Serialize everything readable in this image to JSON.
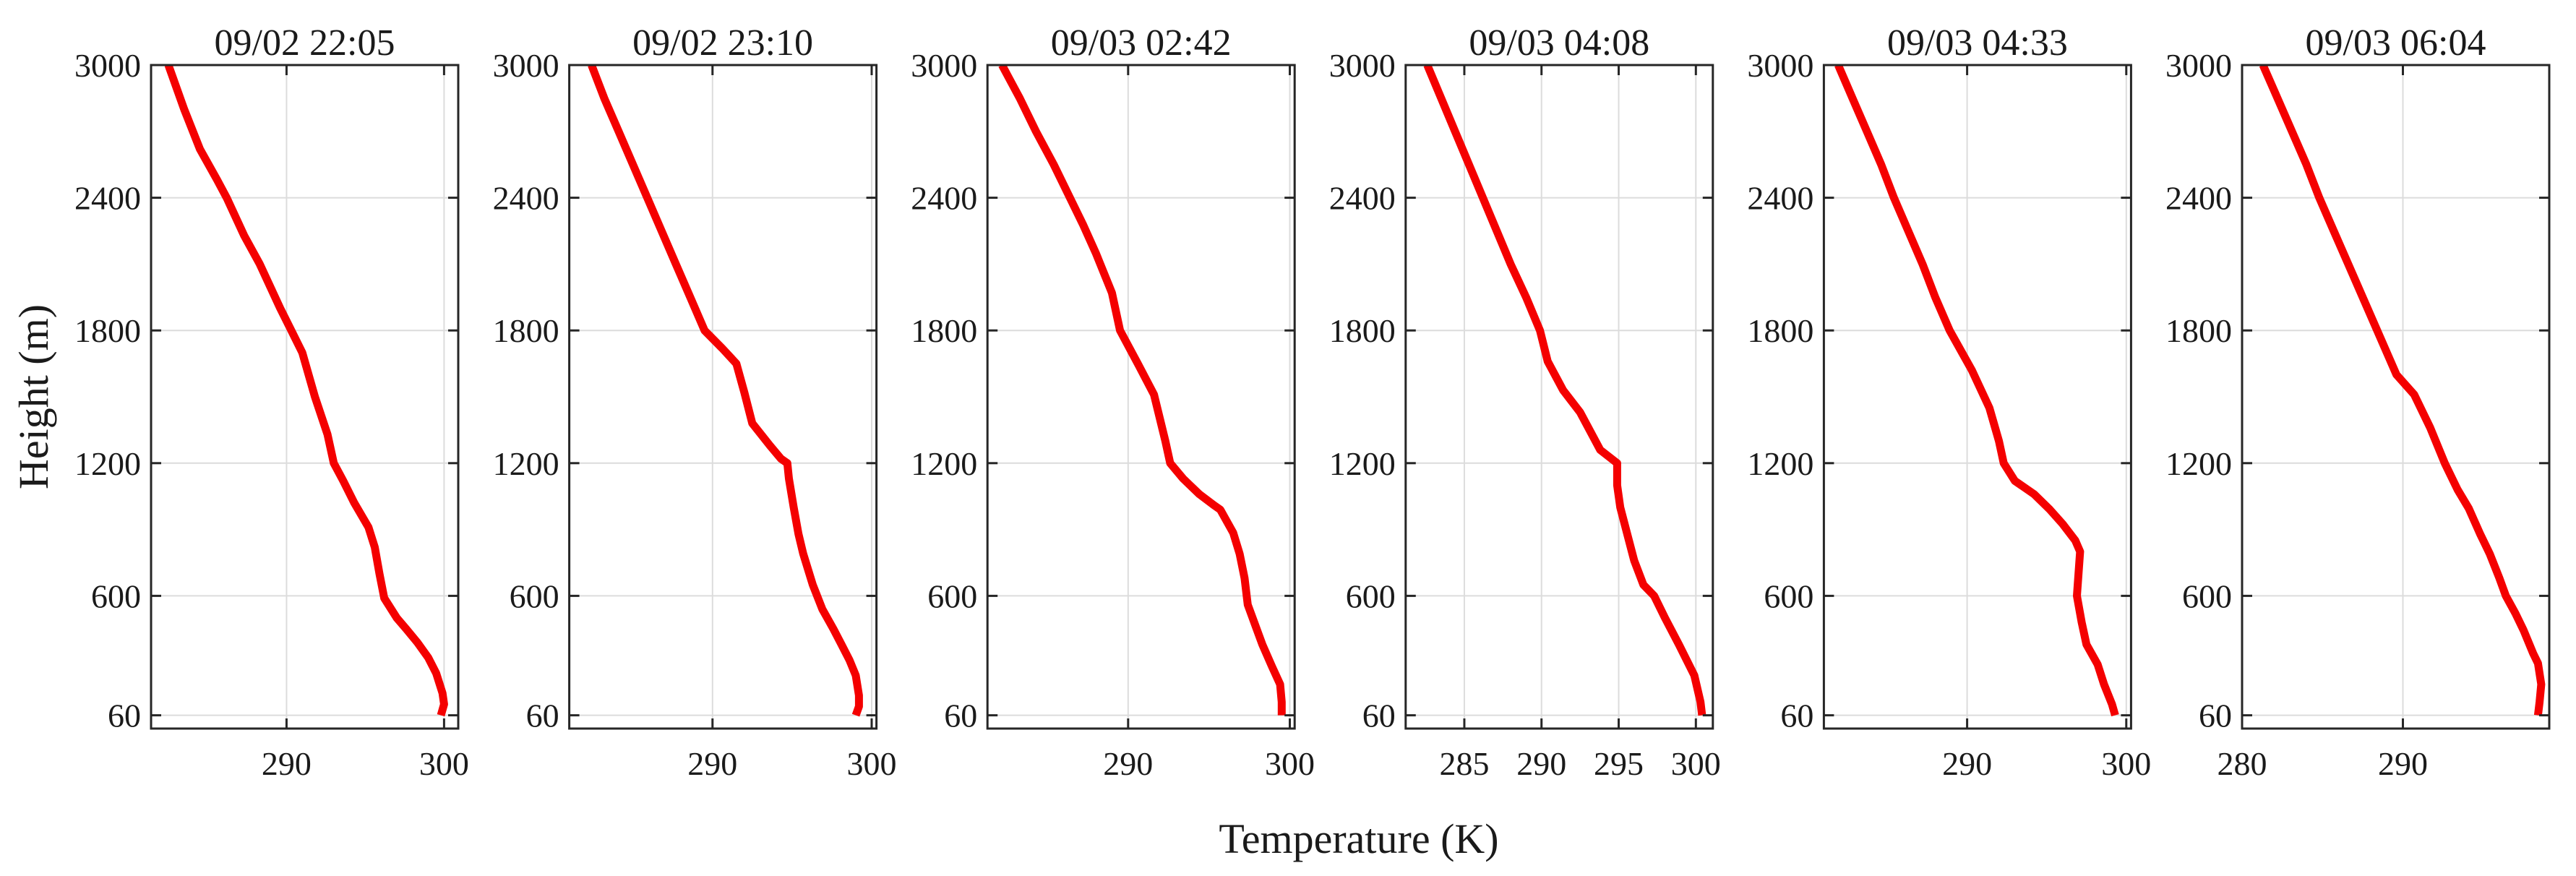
{
  "figure": {
    "xlabel": "Temperature (K)",
    "ylabel": "Height (m)",
    "line_color": "#f40000",
    "axis_color": "#262626",
    "grid_color": "#dcdcdc",
    "background": "#ffffff"
  },
  "chart_data": [
    {
      "type": "line",
      "title": "09/02 22:05",
      "xlim": [
        281.4,
        300.9
      ],
      "ylim": [
        0,
        3000
      ],
      "x_ticks": [
        290,
        300
      ],
      "y_ticks": [
        60,
        600,
        1200,
        1800,
        2400,
        3000
      ],
      "grid": true,
      "series": [
        {
          "name": "temperature_profile",
          "points": [
            [
              282.5,
              3000
            ],
            [
              283.5,
              2800
            ],
            [
              284.5,
              2620
            ],
            [
              285.6,
              2480
            ],
            [
              286.2,
              2400
            ],
            [
              287.3,
              2230
            ],
            [
              288.3,
              2100
            ],
            [
              289.6,
              1900
            ],
            [
              290.3,
              1800
            ],
            [
              291.0,
              1700
            ],
            [
              291.8,
              1500
            ],
            [
              292.6,
              1330
            ],
            [
              293.0,
              1200
            ],
            [
              293.6,
              1120
            ],
            [
              294.3,
              1020
            ],
            [
              295.2,
              910
            ],
            [
              295.6,
              820
            ],
            [
              295.9,
              700
            ],
            [
              296.2,
              590
            ],
            [
              297.0,
              500
            ],
            [
              297.6,
              450
            ],
            [
              298.3,
              390
            ],
            [
              299.0,
              320
            ],
            [
              299.5,
              250
            ],
            [
              299.9,
              160
            ],
            [
              300.0,
              110
            ],
            [
              299.8,
              60
            ]
          ]
        }
      ]
    },
    {
      "type": "line",
      "title": "09/02 23:10",
      "xlim": [
        281.0,
        300.3
      ],
      "ylim": [
        0,
        3000
      ],
      "x_ticks": [
        290,
        300
      ],
      "y_ticks": [
        60,
        600,
        1200,
        1800,
        2400,
        3000
      ],
      "grid": true,
      "series": [
        {
          "name": "temperature_profile",
          "points": [
            [
              282.4,
              3000
            ],
            [
              283.2,
              2850
            ],
            [
              284.1,
              2700
            ],
            [
              285.0,
              2550
            ],
            [
              285.9,
              2400
            ],
            [
              286.8,
              2250
            ],
            [
              287.7,
              2100
            ],
            [
              288.6,
              1950
            ],
            [
              289.5,
              1800
            ],
            [
              290.6,
              1720
            ],
            [
              291.5,
              1650
            ],
            [
              292.0,
              1520
            ],
            [
              292.5,
              1380
            ],
            [
              293.6,
              1280
            ],
            [
              294.3,
              1220
            ],
            [
              294.7,
              1200
            ],
            [
              294.8,
              1130
            ],
            [
              295.1,
              1000
            ],
            [
              295.4,
              880
            ],
            [
              295.7,
              790
            ],
            [
              296.3,
              650
            ],
            [
              296.9,
              540
            ],
            [
              297.6,
              450
            ],
            [
              298.1,
              380
            ],
            [
              298.6,
              310
            ],
            [
              299.0,
              240
            ],
            [
              299.2,
              150
            ],
            [
              299.2,
              100
            ],
            [
              299.0,
              60
            ]
          ]
        }
      ]
    },
    {
      "type": "line",
      "title": "09/03 02:42",
      "xlim": [
        281.3,
        300.3
      ],
      "ylim": [
        0,
        3000
      ],
      "x_ticks": [
        290,
        300
      ],
      "y_ticks": [
        60,
        600,
        1200,
        1800,
        2400,
        3000
      ],
      "grid": true,
      "series": [
        {
          "name": "temperature_profile",
          "points": [
            [
              282.2,
              3000
            ],
            [
              283.3,
              2850
            ],
            [
              284.3,
              2700
            ],
            [
              285.4,
              2550
            ],
            [
              286.4,
              2400
            ],
            [
              287.2,
              2280
            ],
            [
              288.0,
              2150
            ],
            [
              289.0,
              1970
            ],
            [
              289.5,
              1800
            ],
            [
              290.6,
              1650
            ],
            [
              291.6,
              1510
            ],
            [
              292.3,
              1300
            ],
            [
              292.6,
              1200
            ],
            [
              293.4,
              1130
            ],
            [
              294.4,
              1060
            ],
            [
              295.3,
              1010
            ],
            [
              295.7,
              990
            ],
            [
              296.5,
              885
            ],
            [
              296.9,
              790
            ],
            [
              297.2,
              680
            ],
            [
              297.4,
              560
            ],
            [
              297.9,
              460
            ],
            [
              298.3,
              380
            ],
            [
              298.9,
              280
            ],
            [
              299.4,
              200
            ],
            [
              299.5,
              120
            ],
            [
              299.5,
              60
            ]
          ]
        }
      ]
    },
    {
      "type": "line",
      "title": "09/03 04:08",
      "xlim": [
        281.2,
        301.1
      ],
      "ylim": [
        0,
        3000
      ],
      "x_ticks": [
        285,
        290,
        295,
        300
      ],
      "y_ticks": [
        60,
        600,
        1200,
        1800,
        2400,
        3000
      ],
      "grid": true,
      "series": [
        {
          "name": "temperature_profile",
          "points": [
            [
              282.6,
              3000
            ],
            [
              283.5,
              2850
            ],
            [
              284.4,
              2700
            ],
            [
              285.3,
              2550
            ],
            [
              286.2,
              2400
            ],
            [
              287.1,
              2250
            ],
            [
              288.0,
              2100
            ],
            [
              289.0,
              1950
            ],
            [
              289.9,
              1800
            ],
            [
              290.4,
              1660
            ],
            [
              291.4,
              1530
            ],
            [
              292.5,
              1430
            ],
            [
              293.8,
              1260
            ],
            [
              294.9,
              1200
            ],
            [
              294.9,
              1100
            ],
            [
              295.1,
              1000
            ],
            [
              295.4,
              920
            ],
            [
              296.0,
              760
            ],
            [
              296.6,
              650
            ],
            [
              297.3,
              600
            ],
            [
              298.0,
              500
            ],
            [
              298.9,
              380
            ],
            [
              299.9,
              240
            ],
            [
              300.3,
              120
            ],
            [
              300.4,
              60
            ]
          ]
        }
      ]
    },
    {
      "type": "line",
      "title": "09/03 04:33",
      "xlim": [
        281.0,
        300.3
      ],
      "ylim": [
        0,
        3000
      ],
      "x_ticks": [
        290,
        300
      ],
      "y_ticks": [
        60,
        600,
        1200,
        1800,
        2400,
        3000
      ],
      "grid": true,
      "series": [
        {
          "name": "temperature_profile",
          "points": [
            [
              281.9,
              3000
            ],
            [
              282.8,
              2850
            ],
            [
              283.7,
              2700
            ],
            [
              284.6,
              2550
            ],
            [
              285.4,
              2400
            ],
            [
              286.3,
              2250
            ],
            [
              287.2,
              2100
            ],
            [
              288.0,
              1950
            ],
            [
              288.9,
              1800
            ],
            [
              290.3,
              1620
            ],
            [
              291.4,
              1450
            ],
            [
              292.0,
              1300
            ],
            [
              292.3,
              1200
            ],
            [
              293.0,
              1120
            ],
            [
              294.2,
              1060
            ],
            [
              295.2,
              990
            ],
            [
              296.0,
              925
            ],
            [
              296.8,
              850
            ],
            [
              297.1,
              800
            ],
            [
              297.0,
              700
            ],
            [
              296.9,
              600
            ],
            [
              297.2,
              480
            ],
            [
              297.5,
              380
            ],
            [
              298.2,
              290
            ],
            [
              298.6,
              200
            ],
            [
              299.1,
              110
            ],
            [
              299.3,
              60
            ]
          ]
        }
      ]
    },
    {
      "type": "line",
      "title": "09/03 06:04",
      "xlim": [
        280.0,
        299.1
      ],
      "ylim": [
        0,
        3000
      ],
      "x_ticks": [
        280,
        290
      ],
      "y_ticks": [
        60,
        600,
        1200,
        1800,
        2400,
        3000
      ],
      "grid": true,
      "series": [
        {
          "name": "temperature_profile",
          "points": [
            [
              281.3,
              3000
            ],
            [
              282.2,
              2850
            ],
            [
              283.1,
              2700
            ],
            [
              284.0,
              2550
            ],
            [
              284.8,
              2400
            ],
            [
              285.7,
              2250
            ],
            [
              286.6,
              2100
            ],
            [
              287.5,
              1950
            ],
            [
              288.4,
              1800
            ],
            [
              289.6,
              1600
            ],
            [
              290.7,
              1510
            ],
            [
              291.7,
              1360
            ],
            [
              292.6,
              1200
            ],
            [
              293.4,
              1080
            ],
            [
              294.1,
              995
            ],
            [
              294.8,
              880
            ],
            [
              295.4,
              790
            ],
            [
              296.0,
              680
            ],
            [
              296.4,
              600
            ],
            [
              297.0,
              520
            ],
            [
              297.5,
              445
            ],
            [
              298.1,
              340
            ],
            [
              298.4,
              295
            ],
            [
              298.6,
              200
            ],
            [
              298.5,
              120
            ],
            [
              298.4,
              60
            ]
          ]
        }
      ]
    }
  ]
}
